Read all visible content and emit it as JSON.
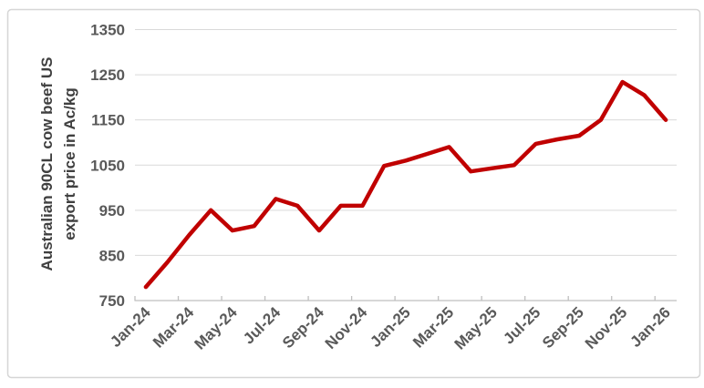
{
  "chart_data": {
    "type": "line",
    "title": "",
    "ylabel": "Australian 90CL cow beef US export price in Ac/kg",
    "ylabel_lines": [
      "Australian 90CL cow beef US",
      "export price in Ac/kg"
    ],
    "xlabel": "",
    "categories": [
      "Jan-24",
      "Feb-24",
      "Mar-24",
      "Apr-24",
      "May-24",
      "Jun-24",
      "Jul-24",
      "Aug-24",
      "Sep-24",
      "Oct-24",
      "Nov-24",
      "Dec-24",
      "Jan-25",
      "Feb-25",
      "Mar-25",
      "Apr-25",
      "May-25",
      "Jun-25",
      "Jul-25",
      "Aug-25",
      "Sep-25",
      "Oct-25",
      "Nov-25",
      "Dec-25",
      "Jan-26"
    ],
    "series": [
      {
        "name": "Australian 90CL cow beef US export price",
        "values": [
          780,
          835,
          895,
          950,
          905,
          915,
          975,
          960,
          905,
          960,
          960,
          1048,
          1060,
          1075,
          1090,
          1036,
          1043,
          1050,
          1097,
          1107,
          1115,
          1150,
          1234,
          1205,
          1150
        ]
      }
    ],
    "x_axis_tick_labels": [
      "Jan-24",
      "Mar-24",
      "May-24",
      "Jul-24",
      "Sep-24",
      "Nov-24",
      "Jan-25",
      "Mar-25",
      "May-25",
      "Jul-25",
      "Sep-25",
      "Nov-25",
      "Jan-26"
    ],
    "x_label_every_n_months": 2,
    "yticks": [
      750,
      850,
      950,
      1050,
      1150,
      1250,
      1350
    ],
    "ylim": [
      750,
      1350
    ],
    "grid": true,
    "legend": "none",
    "colors": {
      "line": "#C00000",
      "gridline": "#D9D9D9",
      "axis": "#BFBFBF",
      "tick_text": "#595959",
      "title_text": "#404040",
      "frame_border": "#D6D6D6",
      "background": "#FFFFFF"
    }
  }
}
